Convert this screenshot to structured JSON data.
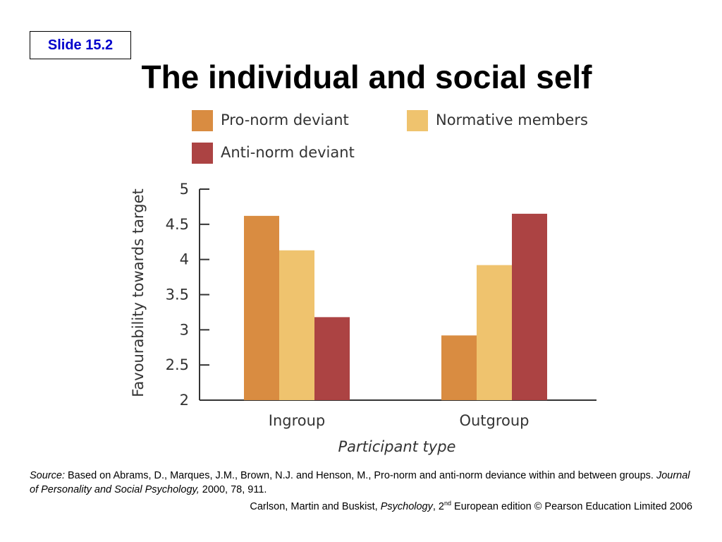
{
  "slide": {
    "label": "Slide 15.2",
    "title": "The individual and social self"
  },
  "colors": {
    "pro_norm": "#d98c41",
    "normative": "#efc36e",
    "anti_norm": "#ac4343",
    "badge_text": "#0000cc"
  },
  "chart_data": {
    "type": "bar",
    "categories": [
      "Ingroup",
      "Outgroup"
    ],
    "series": [
      {
        "name": "Pro-norm deviant",
        "values": [
          4.62,
          2.92
        ]
      },
      {
        "name": "Normative members",
        "values": [
          4.13,
          3.92
        ]
      },
      {
        "name": "Anti-norm deviant",
        "values": [
          3.18,
          4.65
        ]
      }
    ],
    "xlabel": "Participant type",
    "ylabel": "Favourability towards target",
    "ylim": [
      2,
      5
    ],
    "yticks": [
      2,
      2.5,
      3,
      3.5,
      4,
      4.5,
      5
    ],
    "ytick_labels": [
      "2",
      "2.5",
      "3",
      "3.5",
      "4",
      "4.5",
      "5"
    ],
    "grid": false,
    "legend_position": "top"
  },
  "source": {
    "prefix": "Source:",
    "text": " Based on Abrams, D., Marques, J.M., Brown, N.J. and Henson, M., Pro-norm and anti-norm deviance within and between groups. ",
    "journal": "Journal of Personality and Social Psychology,",
    "details": " 2000, 78, 911."
  },
  "credit": {
    "authors": "Carlson, Martin and Buskist, ",
    "book": "Psychology",
    "edition_num": ", 2",
    "edition_sup": "nd",
    "rest": " European edition © Pearson Education Limited 2006"
  }
}
